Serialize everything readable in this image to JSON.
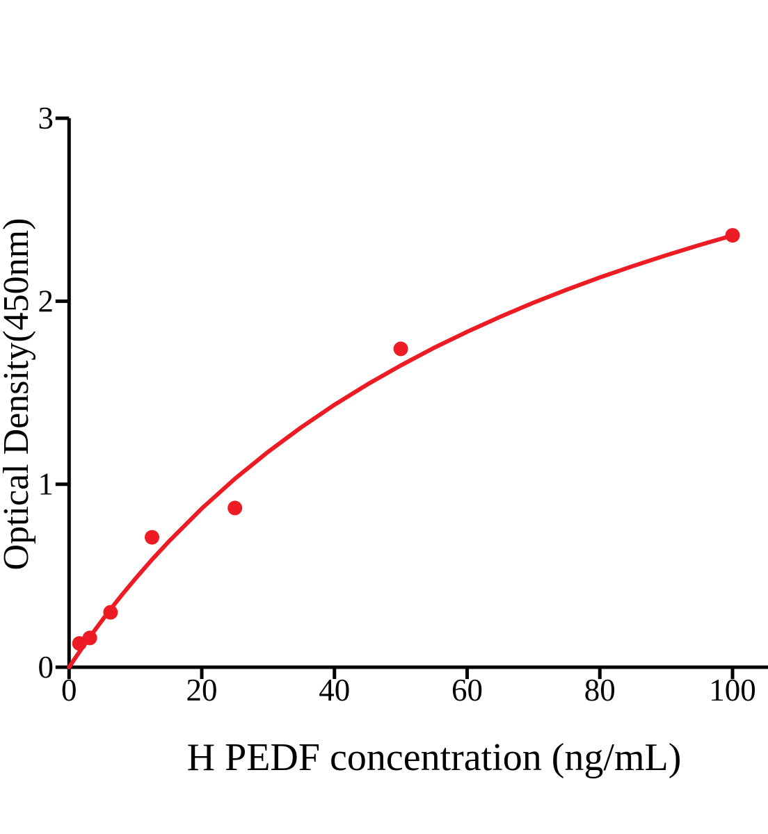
{
  "figure": {
    "background": "#ffffff",
    "accent_color": "#ed1c24",
    "axis_color": "#000000"
  },
  "chart_data": {
    "type": "scatter",
    "title": "",
    "xlabel": "H PEDF concentration (ng/mL)",
    "ylabel": "Optical Density(450nm)",
    "xlim": [
      0,
      105.5
    ],
    "ylim": [
      0,
      3
    ],
    "x_ticks": [
      0,
      20,
      40,
      60,
      80,
      100
    ],
    "y_ticks": [
      0,
      1,
      2,
      3
    ],
    "grid": false,
    "legend_position": "none",
    "series": [
      {
        "name": "standard-points",
        "type": "scatter",
        "color": "#ed1c24",
        "marker": "circle",
        "points": [
          {
            "x": 1.56,
            "y": 0.13
          },
          {
            "x": 3.125,
            "y": 0.16
          },
          {
            "x": 6.25,
            "y": 0.3
          },
          {
            "x": 12.5,
            "y": 0.71
          },
          {
            "x": 25,
            "y": 0.87
          },
          {
            "x": 50,
            "y": 1.74
          },
          {
            "x": 100,
            "y": 2.36
          }
        ]
      },
      {
        "name": "fitted-curve",
        "type": "line",
        "color": "#ed1c24",
        "x": [
          0,
          1,
          2,
          3,
          4,
          5,
          6.25,
          8,
          10,
          12.5,
          15,
          20,
          25,
          30,
          35,
          40,
          45,
          50,
          55,
          60,
          65,
          70,
          75,
          80,
          85,
          90,
          95,
          100
        ],
        "y": [
          0,
          0.054,
          0.107,
          0.158,
          0.208,
          0.257,
          0.317,
          0.397,
          0.484,
          0.588,
          0.686,
          0.867,
          1.03,
          1.177,
          1.311,
          1.434,
          1.546,
          1.649,
          1.745,
          1.833,
          1.915,
          1.992,
          2.063,
          2.13,
          2.192,
          2.251,
          2.307,
          2.359
        ]
      }
    ]
  }
}
